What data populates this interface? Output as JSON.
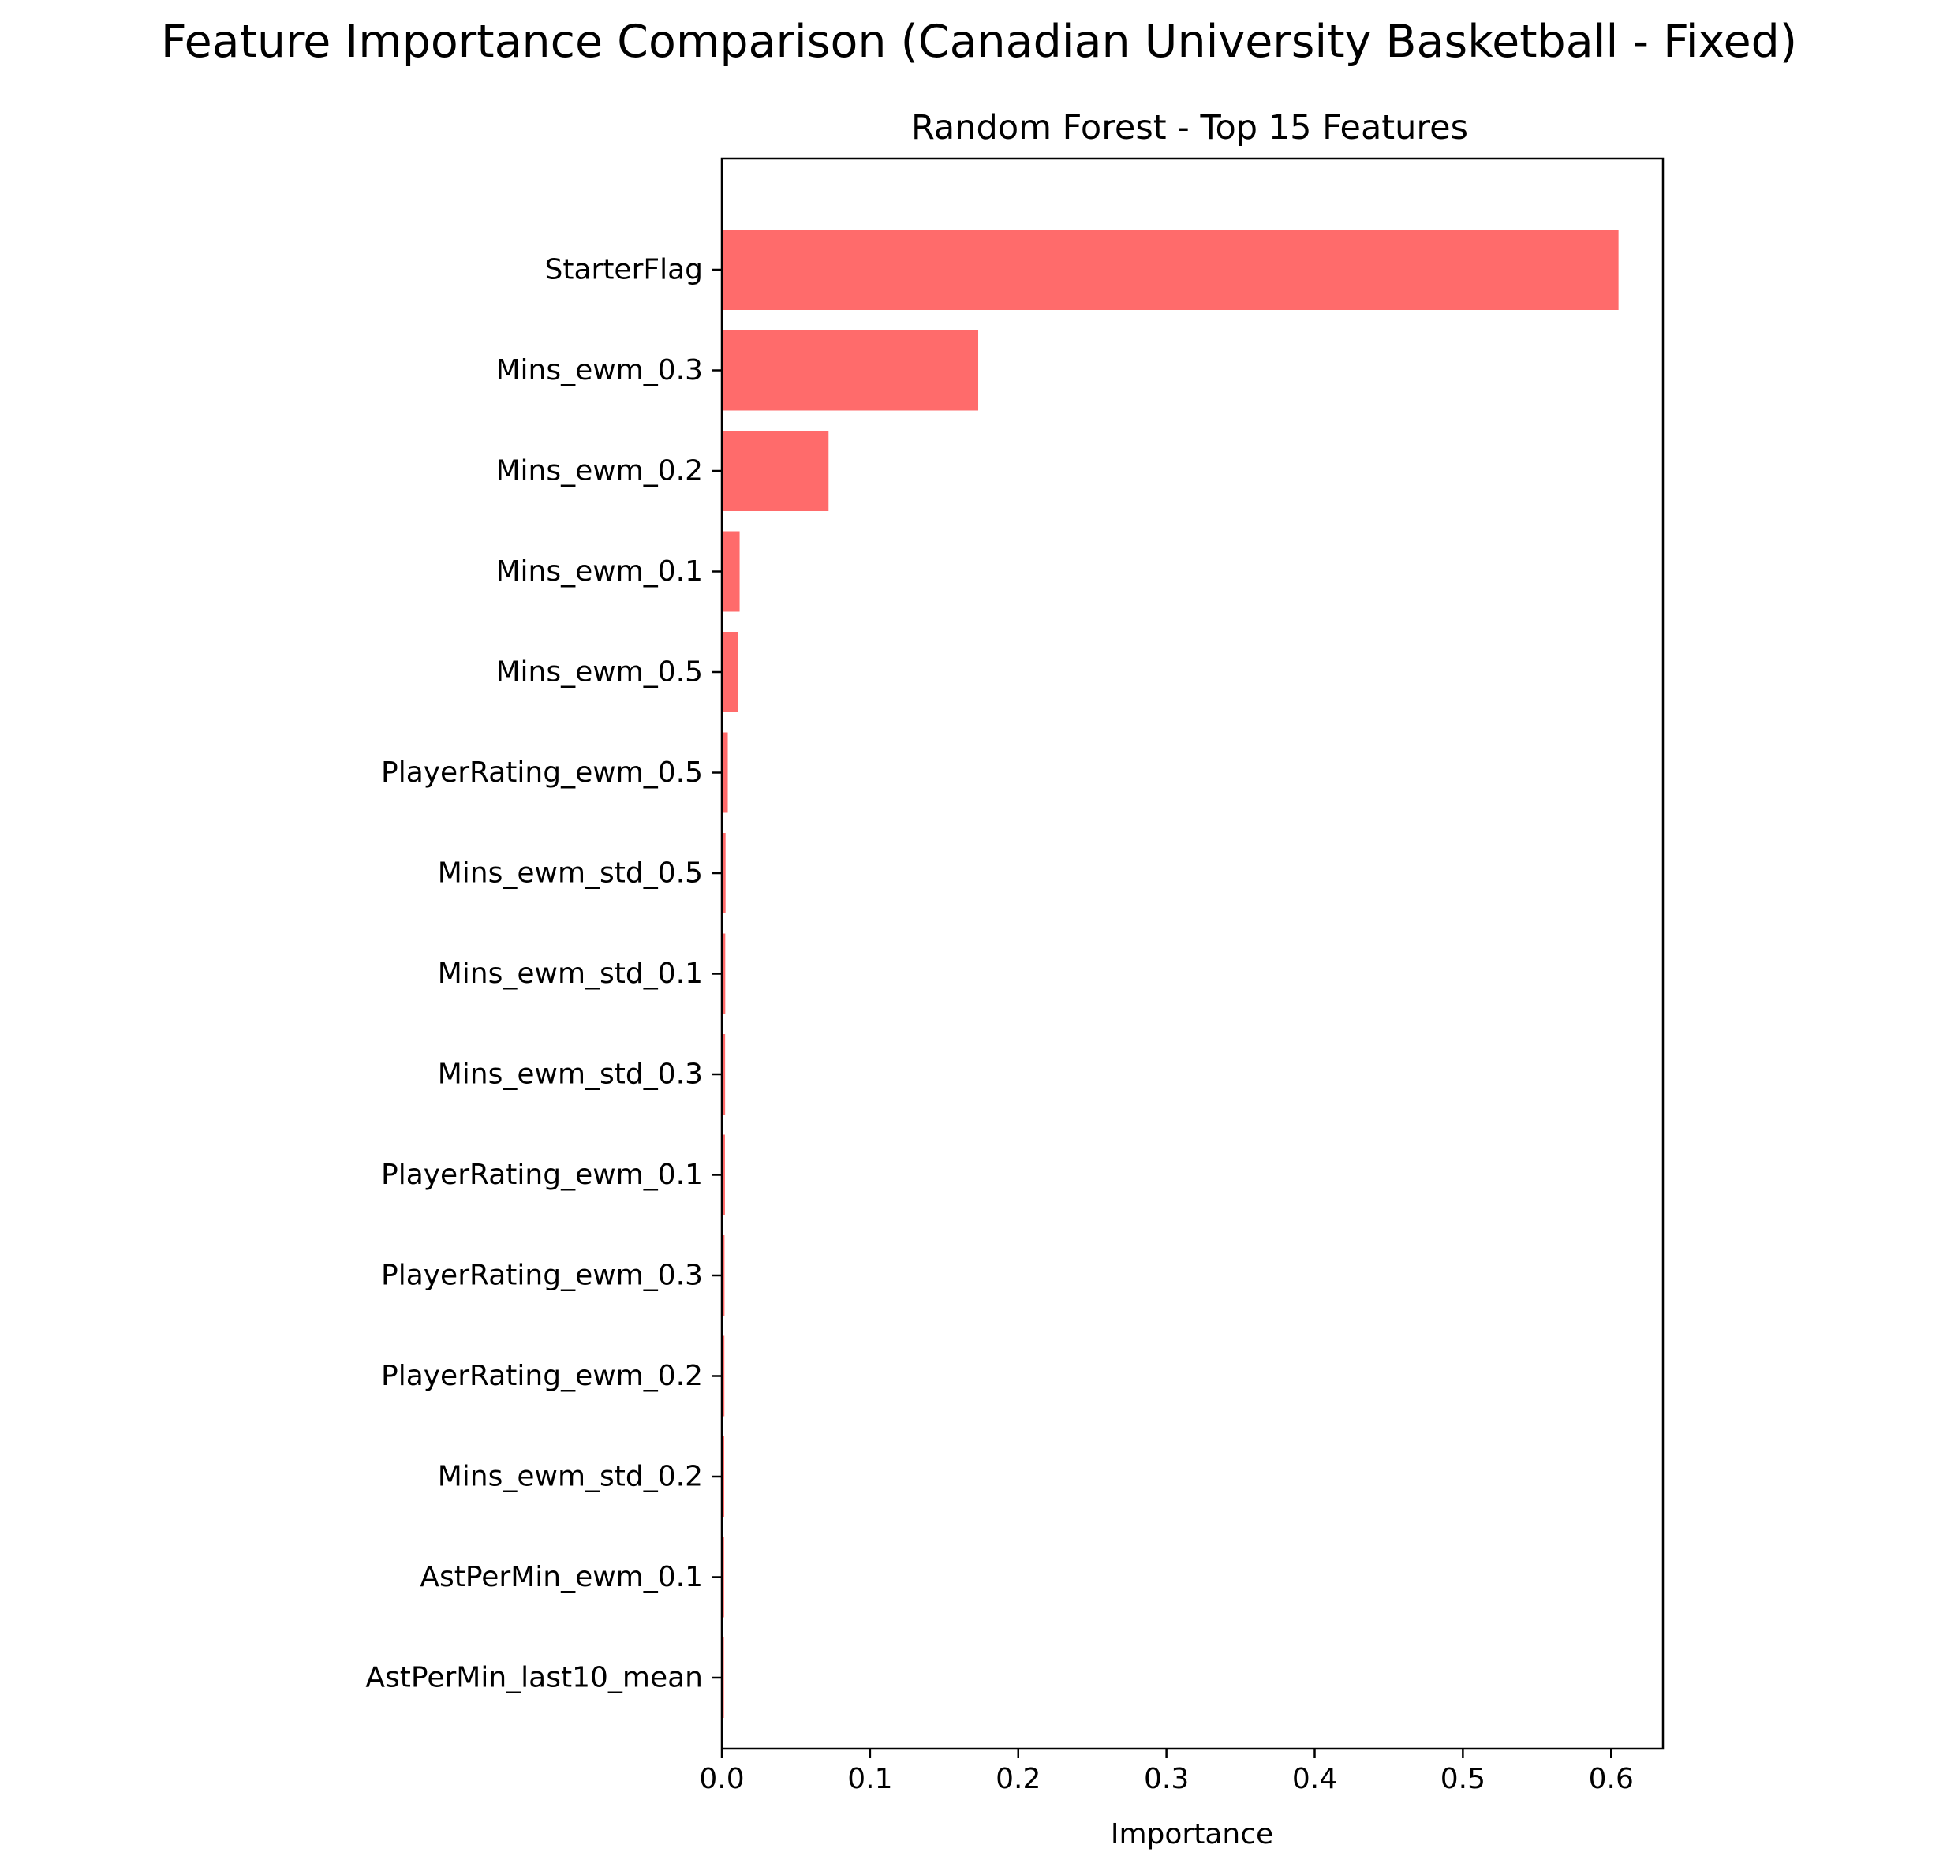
{
  "suptitle": "Feature Importance Comparison (Canadian University Basketball - Fixed)",
  "chart_data": {
    "type": "bar",
    "orientation": "horizontal",
    "title": "Random Forest - Top 15 Features",
    "xlabel": "Importance",
    "ylabel": "",
    "xlim": [
      0,
      0.635
    ],
    "xticks": [
      0.0,
      0.1,
      0.2,
      0.3,
      0.4,
      0.5,
      0.6
    ],
    "xtick_labels": [
      "0.0",
      "0.1",
      "0.2",
      "0.3",
      "0.4",
      "0.5",
      "0.6"
    ],
    "grid": false,
    "legend": "none",
    "bar_color": "#ff6b6b",
    "categories": [
      "StarterFlag",
      "Mins_ewm_0.3",
      "Mins_ewm_0.2",
      "Mins_ewm_0.1",
      "Mins_ewm_0.5",
      "PlayerRating_ewm_0.5",
      "Mins_ewm_std_0.5",
      "Mins_ewm_std_0.1",
      "Mins_ewm_std_0.3",
      "PlayerRating_ewm_0.1",
      "PlayerRating_ewm_0.3",
      "PlayerRating_ewm_0.2",
      "Mins_ewm_std_0.2",
      "AstPerMin_ewm_0.1",
      "AstPerMin_last10_mean"
    ],
    "values": [
      0.605,
      0.173,
      0.072,
      0.012,
      0.011,
      0.004,
      0.0025,
      0.0023,
      0.0022,
      0.0021,
      0.0018,
      0.0017,
      0.0016,
      0.0015,
      0.0014
    ]
  }
}
